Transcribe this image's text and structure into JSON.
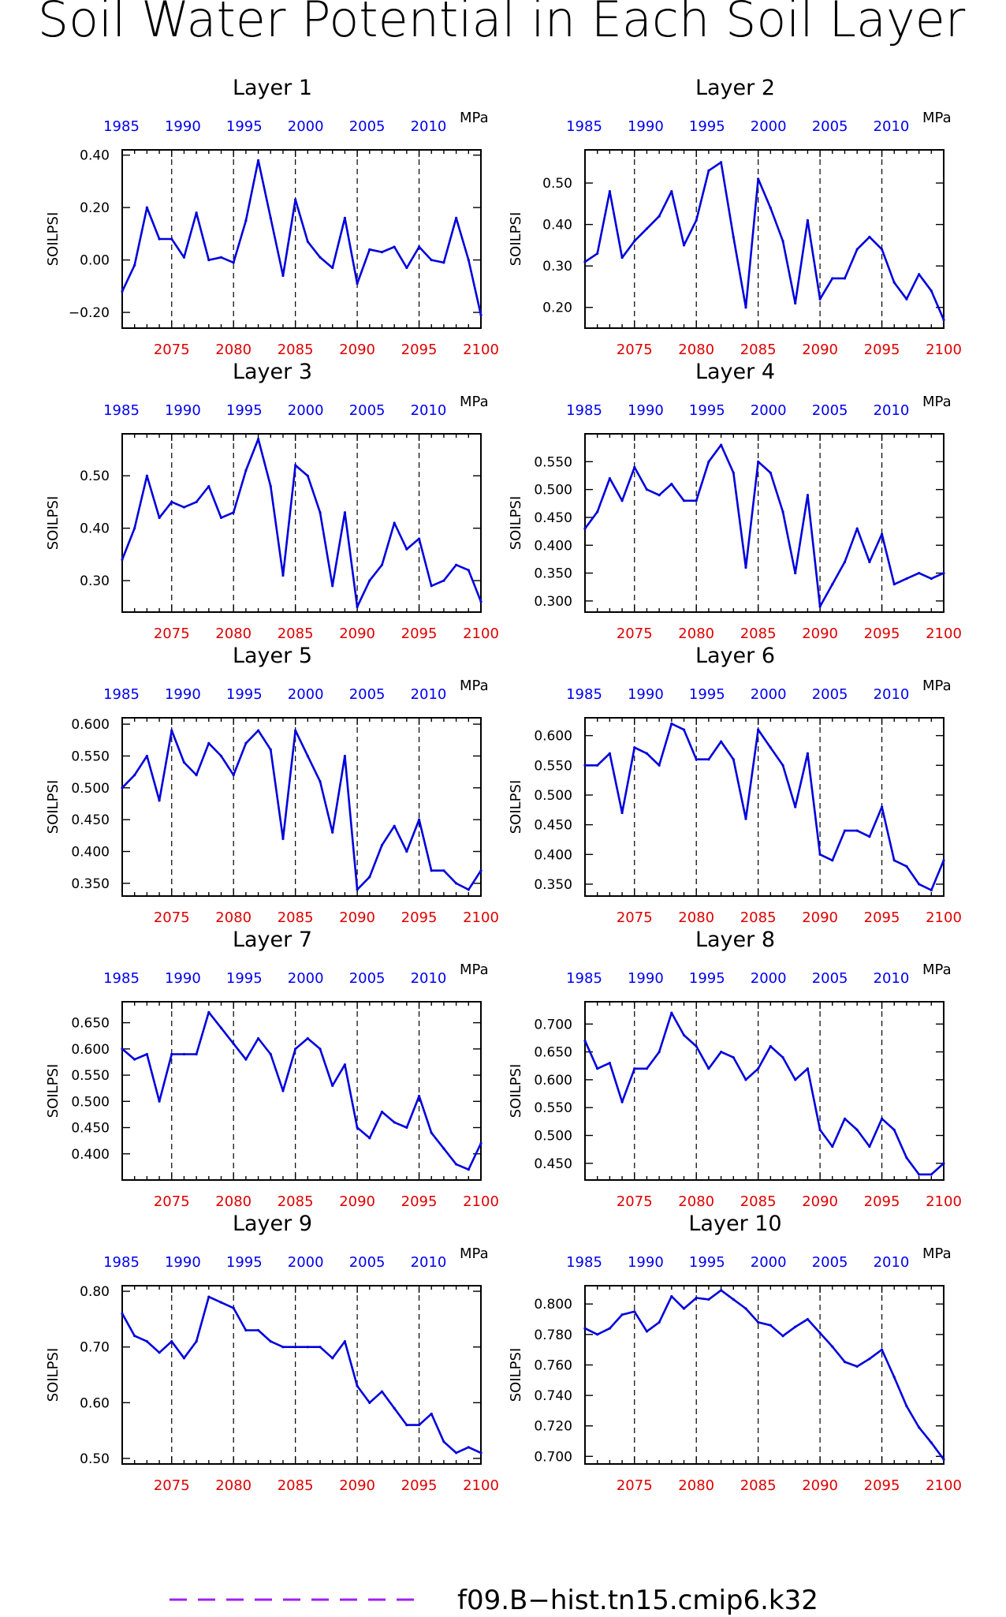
{
  "title": "Soil Water Potential in Each Soil Layer",
  "legend": {
    "label": "f09.B−hist.tn15.cmip6.k32",
    "color": "#a020f0"
  },
  "colors": {
    "series": "#0000dd",
    "bottom_axis": "#e00000",
    "top_axis": "#0000ee",
    "grid": "#000000"
  },
  "chart_data": [
    {
      "type": "line",
      "title": "Layer 1",
      "ylabel": "SOILPSI",
      "unit": "MPa",
      "x_bottom_ticks": [
        "2075",
        "2080",
        "2085",
        "2090",
        "2095",
        "2100"
      ],
      "x_top_ticks": [
        "1985",
        "1990",
        "1995",
        "2000",
        "2005",
        "2010"
      ],
      "grid": "vertical dashed at 2075, 2080, 2085, 2090, 2095",
      "xlim": [
        2071,
        2100
      ],
      "ylim": [
        -0.26,
        0.42
      ],
      "y_ticks": [
        "0.40",
        "0.20",
        "0.00",
        "−0.20"
      ],
      "y_tick_values": [
        0.4,
        0.2,
        0.0,
        -0.2
      ],
      "x": [
        2071,
        2072,
        2073,
        2074,
        2075,
        2076,
        2077,
        2078,
        2079,
        2080,
        2081,
        2082,
        2083,
        2084,
        2085,
        2086,
        2087,
        2088,
        2089,
        2090,
        2091,
        2092,
        2093,
        2094,
        2095,
        2096,
        2097,
        2098,
        2099,
        2100
      ],
      "values": [
        -0.12,
        -0.02,
        0.2,
        0.08,
        0.08,
        0.01,
        0.18,
        0.0,
        0.01,
        -0.01,
        0.15,
        0.38,
        0.16,
        -0.06,
        0.23,
        0.07,
        0.01,
        -0.03,
        0.16,
        -0.09,
        0.04,
        0.03,
        0.05,
        -0.03,
        0.05,
        0.0,
        -0.01,
        0.16,
        0.0,
        -0.21
      ]
    },
    {
      "type": "line",
      "title": "Layer 2",
      "ylabel": "SOILPSI",
      "unit": "MPa",
      "x_bottom_ticks": [
        "2075",
        "2080",
        "2085",
        "2090",
        "2095",
        "2100"
      ],
      "x_top_ticks": [
        "1985",
        "1990",
        "1995",
        "2000",
        "2005",
        "2010"
      ],
      "grid": "vertical dashed at 2075, 2080, 2085, 2090, 2095",
      "xlim": [
        2071,
        2100
      ],
      "ylim": [
        0.15,
        0.58
      ],
      "y_ticks": [
        "0.50",
        "0.40",
        "0.30",
        "0.20"
      ],
      "y_tick_values": [
        0.5,
        0.4,
        0.3,
        0.2
      ],
      "x": [
        2071,
        2072,
        2073,
        2074,
        2075,
        2076,
        2077,
        2078,
        2079,
        2080,
        2081,
        2082,
        2083,
        2084,
        2085,
        2086,
        2087,
        2088,
        2089,
        2090,
        2091,
        2092,
        2093,
        2094,
        2095,
        2096,
        2097,
        2098,
        2099,
        2100
      ],
      "values": [
        0.31,
        0.33,
        0.48,
        0.32,
        0.36,
        0.39,
        0.42,
        0.48,
        0.35,
        0.41,
        0.53,
        0.55,
        0.37,
        0.2,
        0.51,
        0.44,
        0.36,
        0.21,
        0.41,
        0.22,
        0.27,
        0.27,
        0.34,
        0.37,
        0.34,
        0.26,
        0.22,
        0.28,
        0.24,
        0.17
      ]
    },
    {
      "type": "line",
      "title": "Layer 3",
      "ylabel": "SOILPSI",
      "unit": "MPa",
      "x_bottom_ticks": [
        "2075",
        "2080",
        "2085",
        "2090",
        "2095",
        "2100"
      ],
      "x_top_ticks": [
        "1985",
        "1990",
        "1995",
        "2000",
        "2005",
        "2010"
      ],
      "grid": "vertical dashed at 2075, 2080, 2085, 2090, 2095",
      "xlim": [
        2071,
        2100
      ],
      "ylim": [
        0.24,
        0.58
      ],
      "y_ticks": [
        "0.50",
        "0.40",
        "0.30"
      ],
      "y_tick_values": [
        0.5,
        0.4,
        0.3
      ],
      "x": [
        2071,
        2072,
        2073,
        2074,
        2075,
        2076,
        2077,
        2078,
        2079,
        2080,
        2081,
        2082,
        2083,
        2084,
        2085,
        2086,
        2087,
        2088,
        2089,
        2090,
        2091,
        2092,
        2093,
        2094,
        2095,
        2096,
        2097,
        2098,
        2099,
        2100
      ],
      "values": [
        0.34,
        0.4,
        0.5,
        0.42,
        0.45,
        0.44,
        0.45,
        0.48,
        0.42,
        0.43,
        0.51,
        0.57,
        0.48,
        0.31,
        0.52,
        0.5,
        0.43,
        0.29,
        0.43,
        0.25,
        0.3,
        0.33,
        0.41,
        0.36,
        0.38,
        0.29,
        0.3,
        0.33,
        0.32,
        0.26
      ]
    },
    {
      "type": "line",
      "title": "Layer 4",
      "ylabel": "SOILPSI",
      "unit": "MPa",
      "x_bottom_ticks": [
        "2075",
        "2080",
        "2085",
        "2090",
        "2095",
        "2100"
      ],
      "x_top_ticks": [
        "1985",
        "1990",
        "1995",
        "2000",
        "2005",
        "2010"
      ],
      "grid": "vertical dashed at 2075, 2080, 2085, 2090, 2095",
      "xlim": [
        2071,
        2100
      ],
      "ylim": [
        0.28,
        0.6
      ],
      "y_ticks": [
        "0.550",
        "0.500",
        "0.450",
        "0.400",
        "0.350",
        "0.300"
      ],
      "y_tick_values": [
        0.55,
        0.5,
        0.45,
        0.4,
        0.35,
        0.3
      ],
      "x": [
        2071,
        2072,
        2073,
        2074,
        2075,
        2076,
        2077,
        2078,
        2079,
        2080,
        2081,
        2082,
        2083,
        2084,
        2085,
        2086,
        2087,
        2088,
        2089,
        2090,
        2091,
        2092,
        2093,
        2094,
        2095,
        2096,
        2097,
        2098,
        2099,
        2100
      ],
      "values": [
        0.43,
        0.46,
        0.52,
        0.48,
        0.54,
        0.5,
        0.49,
        0.51,
        0.48,
        0.48,
        0.55,
        0.58,
        0.53,
        0.36,
        0.55,
        0.53,
        0.46,
        0.35,
        0.49,
        0.29,
        0.33,
        0.37,
        0.43,
        0.37,
        0.42,
        0.33,
        0.34,
        0.35,
        0.34,
        0.35
      ]
    },
    {
      "type": "line",
      "title": "Layer 5",
      "ylabel": "SOILPSI",
      "unit": "MPa",
      "x_bottom_ticks": [
        "2075",
        "2080",
        "2085",
        "2090",
        "2095",
        "2100"
      ],
      "x_top_ticks": [
        "1985",
        "1990",
        "1995",
        "2000",
        "2005",
        "2010"
      ],
      "grid": "vertical dashed at 2075, 2080, 2085, 2090, 2095",
      "xlim": [
        2071,
        2100
      ],
      "ylim": [
        0.33,
        0.61
      ],
      "y_ticks": [
        "0.600",
        "0.550",
        "0.500",
        "0.450",
        "0.400",
        "0.350"
      ],
      "y_tick_values": [
        0.6,
        0.55,
        0.5,
        0.45,
        0.4,
        0.35
      ],
      "x": [
        2071,
        2072,
        2073,
        2074,
        2075,
        2076,
        2077,
        2078,
        2079,
        2080,
        2081,
        2082,
        2083,
        2084,
        2085,
        2086,
        2087,
        2088,
        2089,
        2090,
        2091,
        2092,
        2093,
        2094,
        2095,
        2096,
        2097,
        2098,
        2099,
        2100
      ],
      "values": [
        0.5,
        0.52,
        0.55,
        0.48,
        0.59,
        0.54,
        0.52,
        0.57,
        0.55,
        0.52,
        0.57,
        0.59,
        0.56,
        0.42,
        0.59,
        0.55,
        0.51,
        0.43,
        0.55,
        0.34,
        0.36,
        0.41,
        0.44,
        0.4,
        0.45,
        0.37,
        0.37,
        0.35,
        0.34,
        0.37
      ]
    },
    {
      "type": "line",
      "title": "Layer 6",
      "ylabel": "SOILPSI",
      "unit": "MPa",
      "x_bottom_ticks": [
        "2075",
        "2080",
        "2085",
        "2090",
        "2095",
        "2100"
      ],
      "x_top_ticks": [
        "1985",
        "1990",
        "1995",
        "2000",
        "2005",
        "2010"
      ],
      "grid": "vertical dashed at 2075, 2080, 2085, 2090, 2095",
      "xlim": [
        2071,
        2100
      ],
      "ylim": [
        0.33,
        0.63
      ],
      "y_ticks": [
        "0.600",
        "0.550",
        "0.500",
        "0.450",
        "0.400",
        "0.350"
      ],
      "y_tick_values": [
        0.6,
        0.55,
        0.5,
        0.45,
        0.4,
        0.35
      ],
      "x": [
        2071,
        2072,
        2073,
        2074,
        2075,
        2076,
        2077,
        2078,
        2079,
        2080,
        2081,
        2082,
        2083,
        2084,
        2085,
        2086,
        2087,
        2088,
        2089,
        2090,
        2091,
        2092,
        2093,
        2094,
        2095,
        2096,
        2097,
        2098,
        2099,
        2100
      ],
      "values": [
        0.55,
        0.55,
        0.57,
        0.47,
        0.58,
        0.57,
        0.55,
        0.62,
        0.61,
        0.56,
        0.56,
        0.59,
        0.56,
        0.46,
        0.61,
        0.58,
        0.55,
        0.48,
        0.57,
        0.4,
        0.39,
        0.44,
        0.44,
        0.43,
        0.48,
        0.39,
        0.38,
        0.35,
        0.34,
        0.39
      ]
    },
    {
      "type": "line",
      "title": "Layer 7",
      "ylabel": "SOILPSI",
      "unit": "MPa",
      "x_bottom_ticks": [
        "2075",
        "2080",
        "2085",
        "2090",
        "2095",
        "2100"
      ],
      "x_top_ticks": [
        "1985",
        "1990",
        "1995",
        "2000",
        "2005",
        "2010"
      ],
      "grid": "vertical dashed at 2075, 2080, 2085, 2090, 2095",
      "xlim": [
        2071,
        2100
      ],
      "ylim": [
        0.35,
        0.69
      ],
      "y_ticks": [
        "0.650",
        "0.600",
        "0.550",
        "0.500",
        "0.450",
        "0.400"
      ],
      "y_tick_values": [
        0.65,
        0.6,
        0.55,
        0.5,
        0.45,
        0.4
      ],
      "x": [
        2071,
        2072,
        2073,
        2074,
        2075,
        2076,
        2077,
        2078,
        2079,
        2080,
        2081,
        2082,
        2083,
        2084,
        2085,
        2086,
        2087,
        2088,
        2089,
        2090,
        2091,
        2092,
        2093,
        2094,
        2095,
        2096,
        2097,
        2098,
        2099,
        2100
      ],
      "values": [
        0.6,
        0.58,
        0.59,
        0.5,
        0.59,
        0.59,
        0.59,
        0.67,
        0.64,
        0.61,
        0.58,
        0.62,
        0.59,
        0.52,
        0.6,
        0.62,
        0.6,
        0.53,
        0.57,
        0.45,
        0.43,
        0.48,
        0.46,
        0.45,
        0.51,
        0.44,
        0.41,
        0.38,
        0.37,
        0.42
      ]
    },
    {
      "type": "line",
      "title": "Layer 8",
      "ylabel": "SOILPSI",
      "unit": "MPa",
      "x_bottom_ticks": [
        "2075",
        "2080",
        "2085",
        "2090",
        "2095",
        "2100"
      ],
      "x_top_ticks": [
        "1985",
        "1990",
        "1995",
        "2000",
        "2005",
        "2010"
      ],
      "grid": "vertical dashed at 2075, 2080, 2085, 2090, 2095",
      "xlim": [
        2071,
        2100
      ],
      "ylim": [
        0.42,
        0.74
      ],
      "y_ticks": [
        "0.700",
        "0.650",
        "0.600",
        "0.550",
        "0.500",
        "0.450"
      ],
      "y_tick_values": [
        0.7,
        0.65,
        0.6,
        0.55,
        0.5,
        0.45
      ],
      "x": [
        2071,
        2072,
        2073,
        2074,
        2075,
        2076,
        2077,
        2078,
        2079,
        2080,
        2081,
        2082,
        2083,
        2084,
        2085,
        2086,
        2087,
        2088,
        2089,
        2090,
        2091,
        2092,
        2093,
        2094,
        2095,
        2096,
        2097,
        2098,
        2099,
        2100
      ],
      "values": [
        0.67,
        0.62,
        0.63,
        0.56,
        0.62,
        0.62,
        0.65,
        0.72,
        0.68,
        0.66,
        0.62,
        0.65,
        0.64,
        0.6,
        0.62,
        0.66,
        0.64,
        0.6,
        0.62,
        0.51,
        0.48,
        0.53,
        0.51,
        0.48,
        0.53,
        0.51,
        0.46,
        0.43,
        0.43,
        0.45
      ]
    },
    {
      "type": "line",
      "title": "Layer 9",
      "ylabel": "SOILPSI",
      "unit": "MPa",
      "x_bottom_ticks": [
        "2075",
        "2080",
        "2085",
        "2090",
        "2095",
        "2100"
      ],
      "x_top_ticks": [
        "1985",
        "1990",
        "1995",
        "2000",
        "2005",
        "2010"
      ],
      "grid": "vertical dashed at 2075, 2080, 2085, 2090, 2095",
      "xlim": [
        2071,
        2100
      ],
      "ylim": [
        0.49,
        0.81
      ],
      "y_ticks": [
        "0.80",
        "0.70",
        "0.60",
        "0.50"
      ],
      "y_tick_values": [
        0.8,
        0.7,
        0.6,
        0.5
      ],
      "x": [
        2071,
        2072,
        2073,
        2074,
        2075,
        2076,
        2077,
        2078,
        2079,
        2080,
        2081,
        2082,
        2083,
        2084,
        2085,
        2086,
        2087,
        2088,
        2089,
        2090,
        2091,
        2092,
        2093,
        2094,
        2095,
        2096,
        2097,
        2098,
        2099,
        2100
      ],
      "values": [
        0.76,
        0.72,
        0.71,
        0.69,
        0.71,
        0.68,
        0.71,
        0.79,
        0.78,
        0.77,
        0.73,
        0.73,
        0.71,
        0.7,
        0.7,
        0.7,
        0.7,
        0.68,
        0.71,
        0.63,
        0.6,
        0.62,
        0.59,
        0.56,
        0.56,
        0.58,
        0.53,
        0.51,
        0.52,
        0.51
      ]
    },
    {
      "type": "line",
      "title": "Layer 10",
      "ylabel": "SOILPSI",
      "unit": "MPa",
      "x_bottom_ticks": [
        "2075",
        "2080",
        "2085",
        "2090",
        "2095",
        "2100"
      ],
      "x_top_ticks": [
        "1985",
        "1990",
        "1995",
        "2000",
        "2005",
        "2010"
      ],
      "grid": "vertical dashed at 2075, 2080, 2085, 2090, 2095",
      "xlim": [
        2071,
        2100
      ],
      "ylim": [
        0.695,
        0.812
      ],
      "y_ticks": [
        "0.800",
        "0.780",
        "0.760",
        "0.740",
        "0.720",
        "0.700"
      ],
      "y_tick_values": [
        0.8,
        0.78,
        0.76,
        0.74,
        0.72,
        0.7
      ],
      "x": [
        2071,
        2072,
        2073,
        2074,
        2075,
        2076,
        2077,
        2078,
        2079,
        2080,
        2081,
        2082,
        2083,
        2084,
        2085,
        2086,
        2087,
        2088,
        2089,
        2090,
        2091,
        2092,
        2093,
        2094,
        2095,
        2096,
        2097,
        2098,
        2099,
        2100
      ],
      "values": [
        0.784,
        0.78,
        0.784,
        0.793,
        0.795,
        0.782,
        0.788,
        0.805,
        0.797,
        0.804,
        0.803,
        0.809,
        0.803,
        0.797,
        0.788,
        0.786,
        0.779,
        0.785,
        0.79,
        0.781,
        0.772,
        0.762,
        0.759,
        0.764,
        0.77,
        0.752,
        0.733,
        0.719,
        0.709,
        0.698
      ]
    }
  ]
}
